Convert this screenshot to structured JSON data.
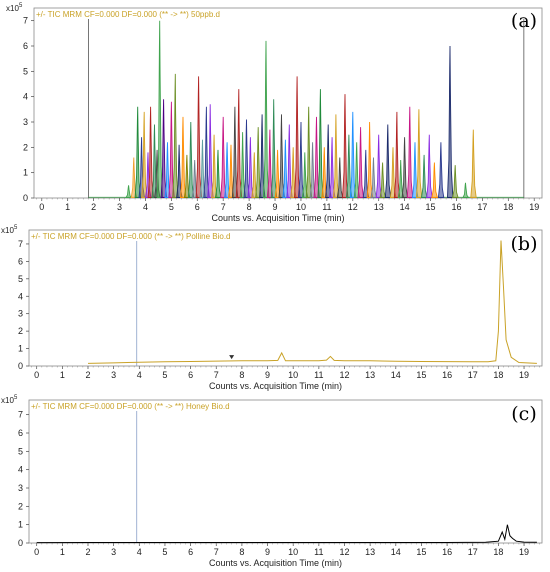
{
  "chart_data": [
    {
      "type": "line",
      "panel_tag": "(a)",
      "header": "+/- TIC MRM CF=0.000 DF=0.000 (** -> **) 50ppb.d",
      "multiplier": "x10",
      "multiplier_exp": "5",
      "xlabel": "Counts vs. Acquisition Time (min)",
      "xlim": [
        -0.3,
        19.3
      ],
      "ylim": [
        0,
        7.5
      ],
      "xticks": [
        "0",
        "1",
        "2",
        "3",
        "4",
        "5",
        "6",
        "7",
        "8",
        "9",
        "10",
        "11",
        "12",
        "13",
        "14",
        "15",
        "16",
        "17",
        "18",
        "19"
      ],
      "yticks": [
        "0",
        "1",
        "2",
        "3",
        "4",
        "5",
        "6",
        "7"
      ],
      "grid": false,
      "markers": [
        1.8,
        18.6
      ],
      "peaks": [
        {
          "x": 3.35,
          "y": 0.5,
          "color": "#3fa34d"
        },
        {
          "x": 3.55,
          "y": 1.6,
          "color": "#f0a030"
        },
        {
          "x": 3.7,
          "y": 3.6,
          "color": "#1f8a3a"
        },
        {
          "x": 3.85,
          "y": 2.4,
          "color": "#2b3a8f"
        },
        {
          "x": 3.95,
          "y": 3.4,
          "color": "#d4a020"
        },
        {
          "x": 4.1,
          "y": 1.8,
          "color": "#8a2be2"
        },
        {
          "x": 4.2,
          "y": 3.6,
          "color": "#b22222"
        },
        {
          "x": 4.35,
          "y": 2.9,
          "color": "#2e8b57"
        },
        {
          "x": 4.45,
          "y": 1.9,
          "color": "#444444"
        },
        {
          "x": 4.55,
          "y": 7.0,
          "color": "#3fa34d"
        },
        {
          "x": 4.7,
          "y": 3.9,
          "color": "#4b0082"
        },
        {
          "x": 4.85,
          "y": 2.2,
          "color": "#1e90ff"
        },
        {
          "x": 5.0,
          "y": 3.8,
          "color": "#c71585"
        },
        {
          "x": 5.15,
          "y": 4.9,
          "color": "#6b8e23"
        },
        {
          "x": 5.3,
          "y": 2.1,
          "color": "#1b2a6b"
        },
        {
          "x": 5.45,
          "y": 3.2,
          "color": "#ff8c00"
        },
        {
          "x": 5.6,
          "y": 1.7,
          "color": "#808000"
        },
        {
          "x": 5.75,
          "y": 3.0,
          "color": "#2e8b57"
        },
        {
          "x": 5.9,
          "y": 1.5,
          "color": "#708090"
        },
        {
          "x": 6.05,
          "y": 4.8,
          "color": "#b22222"
        },
        {
          "x": 6.2,
          "y": 2.3,
          "color": "#5f9ea0"
        },
        {
          "x": 6.35,
          "y": 3.6,
          "color": "#2b3a8f"
        },
        {
          "x": 6.5,
          "y": 3.7,
          "color": "#8a2be2"
        },
        {
          "x": 6.65,
          "y": 2.5,
          "color": "#d4a020"
        },
        {
          "x": 6.8,
          "y": 1.9,
          "color": "#1f8a3a"
        },
        {
          "x": 7.0,
          "y": 3.2,
          "color": "#c71585"
        },
        {
          "x": 7.15,
          "y": 2.2,
          "color": "#1e90ff"
        },
        {
          "x": 7.3,
          "y": 2.1,
          "color": "#ff8c00"
        },
        {
          "x": 7.45,
          "y": 3.6,
          "color": "#444444"
        },
        {
          "x": 7.6,
          "y": 4.3,
          "color": "#b22222"
        },
        {
          "x": 7.75,
          "y": 2.6,
          "color": "#3fa34d"
        },
        {
          "x": 7.9,
          "y": 3.1,
          "color": "#2b3a8f"
        },
        {
          "x": 8.05,
          "y": 2.4,
          "color": "#8a2be2"
        },
        {
          "x": 8.2,
          "y": 1.8,
          "color": "#d4a020"
        },
        {
          "x": 8.35,
          "y": 2.8,
          "color": "#6b8e23"
        },
        {
          "x": 8.5,
          "y": 3.3,
          "color": "#1b2a6b"
        },
        {
          "x": 8.65,
          "y": 6.2,
          "color": "#3fa34d"
        },
        {
          "x": 8.8,
          "y": 2.7,
          "color": "#c71585"
        },
        {
          "x": 8.95,
          "y": 3.9,
          "color": "#2e8b57"
        },
        {
          "x": 9.1,
          "y": 1.9,
          "color": "#ff8c00"
        },
        {
          "x": 9.25,
          "y": 3.3,
          "color": "#444444"
        },
        {
          "x": 9.4,
          "y": 2.3,
          "color": "#1e90ff"
        },
        {
          "x": 9.55,
          "y": 2.9,
          "color": "#8a2be2"
        },
        {
          "x": 9.7,
          "y": 2.0,
          "color": "#d4a020"
        },
        {
          "x": 9.85,
          "y": 4.8,
          "color": "#b22222"
        },
        {
          "x": 10.0,
          "y": 3.0,
          "color": "#2b3a8f"
        },
        {
          "x": 10.15,
          "y": 1.8,
          "color": "#3fa34d"
        },
        {
          "x": 10.3,
          "y": 3.6,
          "color": "#6b8e23"
        },
        {
          "x": 10.45,
          "y": 2.2,
          "color": "#708090"
        },
        {
          "x": 10.6,
          "y": 3.2,
          "color": "#c71585"
        },
        {
          "x": 10.75,
          "y": 4.3,
          "color": "#1f8a3a"
        },
        {
          "x": 10.9,
          "y": 2.0,
          "color": "#ff8c00"
        },
        {
          "x": 11.05,
          "y": 2.9,
          "color": "#1b2a6b"
        },
        {
          "x": 11.2,
          "y": 2.4,
          "color": "#8a2be2"
        },
        {
          "x": 11.35,
          "y": 3.3,
          "color": "#d4a020"
        },
        {
          "x": 11.5,
          "y": 1.6,
          "color": "#444444"
        },
        {
          "x": 11.7,
          "y": 4.1,
          "color": "#b22222"
        },
        {
          "x": 11.85,
          "y": 2.5,
          "color": "#2e8b57"
        },
        {
          "x": 12.0,
          "y": 3.4,
          "color": "#1e90ff"
        },
        {
          "x": 12.15,
          "y": 2.2,
          "color": "#3fa34d"
        },
        {
          "x": 12.3,
          "y": 2.8,
          "color": "#c71585"
        },
        {
          "x": 12.5,
          "y": 1.9,
          "color": "#2b3a8f"
        },
        {
          "x": 12.65,
          "y": 3.0,
          "color": "#ff8c00"
        },
        {
          "x": 12.8,
          "y": 1.6,
          "color": "#708090"
        },
        {
          "x": 13.0,
          "y": 2.5,
          "color": "#8a2be2"
        },
        {
          "x": 13.15,
          "y": 1.4,
          "color": "#6b8e23"
        },
        {
          "x": 13.35,
          "y": 2.9,
          "color": "#1b2a6b"
        },
        {
          "x": 13.55,
          "y": 2.0,
          "color": "#d4a020"
        },
        {
          "x": 13.7,
          "y": 3.4,
          "color": "#b22222"
        },
        {
          "x": 13.85,
          "y": 1.5,
          "color": "#3fa34d"
        },
        {
          "x": 14.0,
          "y": 2.4,
          "color": "#444444"
        },
        {
          "x": 14.2,
          "y": 3.6,
          "color": "#c71585"
        },
        {
          "x": 14.4,
          "y": 2.2,
          "color": "#1e90ff"
        },
        {
          "x": 14.55,
          "y": 3.5,
          "color": "#d4a020"
        },
        {
          "x": 14.75,
          "y": 1.7,
          "color": "#2e8b57"
        },
        {
          "x": 14.95,
          "y": 2.5,
          "color": "#8a2be2"
        },
        {
          "x": 15.15,
          "y": 1.4,
          "color": "#ff8c00"
        },
        {
          "x": 15.4,
          "y": 2.2,
          "color": "#2b3a8f"
        },
        {
          "x": 15.75,
          "y": 6.0,
          "color": "#1b2a6b"
        },
        {
          "x": 15.95,
          "y": 1.3,
          "color": "#6b8e23"
        },
        {
          "x": 16.35,
          "y": 0.6,
          "color": "#3fa34d"
        },
        {
          "x": 16.65,
          "y": 2.7,
          "color": "#d4a020"
        }
      ]
    },
    {
      "type": "line",
      "panel_tag": "(b)",
      "header": "+/- TIC MRM CF=0.000 DF=0.000 (** -> **) Polline Bio.d",
      "multiplier": "x10",
      "multiplier_exp": "5",
      "xlabel": "Counts vs. Acquisition Time (min)",
      "xlim": [
        -0.3,
        19.7
      ],
      "ylim": [
        0,
        7.8
      ],
      "xticks": [
        "0",
        "1",
        "2",
        "3",
        "4",
        "5",
        "6",
        "7",
        "8",
        "9",
        "10",
        "11",
        "12",
        "13",
        "14",
        "15",
        "16",
        "17",
        "18",
        "19"
      ],
      "yticks": [
        "0",
        "1",
        "2",
        "3",
        "4",
        "5",
        "6",
        "7"
      ],
      "grid": false,
      "line_color": "#c9a227",
      "markers": [
        3.9
      ],
      "arrow_marker_x": 7.6,
      "series": [
        {
          "x": [
            2.0,
            3.0,
            4.0,
            5.0,
            6.0,
            7.0,
            8.0,
            9.0,
            9.4,
            9.55,
            9.7,
            10.0,
            11.0,
            11.3,
            11.45,
            11.6,
            12.0,
            13.0,
            14.0,
            15.0,
            16.0,
            17.0,
            17.6,
            17.9,
            18.0,
            18.1,
            18.2,
            18.3,
            18.5,
            18.8,
            19.5
          ],
          "y": [
            0.15,
            0.18,
            0.22,
            0.24,
            0.26,
            0.28,
            0.3,
            0.3,
            0.32,
            0.75,
            0.3,
            0.3,
            0.3,
            0.34,
            0.55,
            0.32,
            0.3,
            0.3,
            0.27,
            0.26,
            0.25,
            0.24,
            0.24,
            0.3,
            2.0,
            7.2,
            4.5,
            1.5,
            0.5,
            0.2,
            0.15
          ]
        }
      ]
    },
    {
      "type": "line",
      "panel_tag": "(c)",
      "header": "+/- TIC MRM CF=0.000 DF=0.000 (** -> **) Honey Bio.d",
      "multiplier": "x10",
      "multiplier_exp": "5",
      "xlabel": "Counts vs. Acquisition Time (min)",
      "xlim": [
        -0.3,
        19.7
      ],
      "ylim": [
        0,
        7.8
      ],
      "xticks": [
        "0",
        "1",
        "2",
        "3",
        "4",
        "5",
        "6",
        "7",
        "8",
        "9",
        "10",
        "11",
        "12",
        "13",
        "14",
        "15",
        "16",
        "17",
        "18",
        "19"
      ],
      "yticks": [
        "0",
        "1",
        "2",
        "3",
        "4",
        "5",
        "6",
        "7"
      ],
      "grid": false,
      "line_color": "#000000",
      "markers": [
        3.9
      ],
      "series": [
        {
          "x": [
            0.0,
            2.0,
            4.0,
            6.0,
            8.0,
            10.0,
            12.0,
            14.0,
            16.0,
            17.5,
            18.0,
            18.15,
            18.25,
            18.35,
            18.45,
            18.55,
            18.7,
            19.0,
            19.5
          ],
          "y": [
            0.02,
            0.03,
            0.03,
            0.03,
            0.03,
            0.03,
            0.03,
            0.03,
            0.03,
            0.04,
            0.1,
            0.6,
            0.2,
            1.0,
            0.4,
            0.25,
            0.1,
            0.05,
            0.04
          ]
        }
      ]
    }
  ]
}
